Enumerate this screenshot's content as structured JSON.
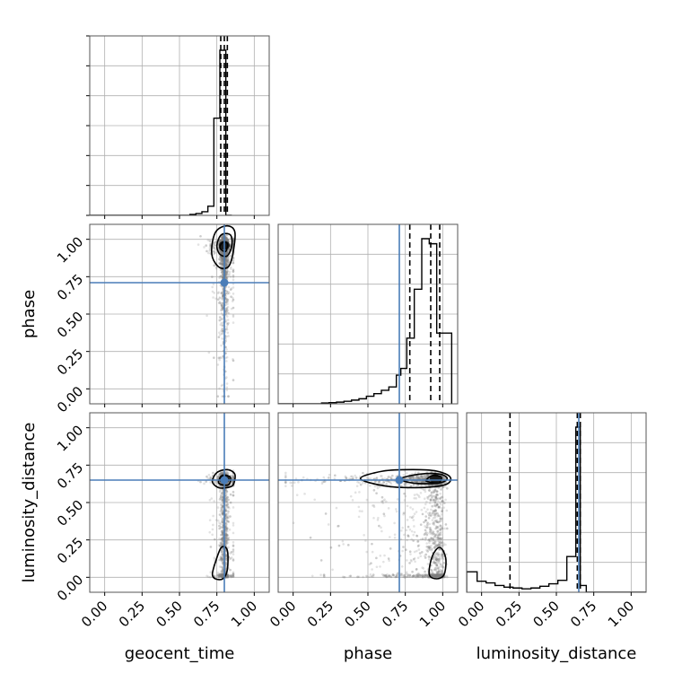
{
  "chart_data": {
    "type": "corner",
    "parameters": [
      "geocent_time",
      "phase",
      "luminosity_distance"
    ],
    "axis_range": [
      -0.1,
      1.1
    ],
    "tick_labels": [
      "0.00",
      "0.25",
      "0.50",
      "0.75",
      "1.00"
    ],
    "grid": true,
    "truths": {
      "geocent_time": 0.8,
      "phase": 0.71,
      "luminosity_distance": 0.65
    },
    "truth_color": "#4a7db8",
    "sample_color": "#808080",
    "histograms": {
      "geocent_time": {
        "bin_edges": [
          -0.1,
          0.57,
          0.61,
          0.65,
          0.69,
          0.73,
          0.77,
          0.81,
          0.85
        ],
        "counts": [
          0.0,
          0.005,
          0.01,
          0.02,
          0.05,
          0.53,
          0.9,
          0.0
        ],
        "quantiles": [
          0.776,
          0.8,
          0.82
        ]
      },
      "phase": {
        "bin_edges": [
          -0.1,
          0.19,
          0.24,
          0.29,
          0.34,
          0.39,
          0.44,
          0.49,
          0.54,
          0.59,
          0.64,
          0.69,
          0.72,
          0.76,
          0.81,
          0.86,
          0.91,
          0.96,
          1.01,
          1.06
        ],
        "counts": [
          0.0,
          0.005,
          0.007,
          0.01,
          0.015,
          0.022,
          0.03,
          0.045,
          0.06,
          0.08,
          0.1,
          0.17,
          0.21,
          0.39,
          0.68,
          0.98,
          0.95,
          0.42,
          0.42
        ],
        "quantiles": [
          0.78,
          0.92,
          0.98
        ]
      },
      "luminosity_distance": {
        "bin_edges": [
          -0.1,
          -0.03,
          0.03,
          0.09,
          0.15,
          0.21,
          0.27,
          0.33,
          0.39,
          0.45,
          0.51,
          0.57,
          0.63,
          0.66,
          0.7,
          1.1
        ],
        "counts": [
          0.12,
          0.065,
          0.055,
          0.04,
          0.03,
          0.025,
          0.02,
          0.025,
          0.035,
          0.05,
          0.07,
          0.21,
          0.97,
          0.04,
          0.0
        ],
        "quantiles": [
          0.19,
          0.64,
          0.66
        ]
      }
    },
    "contours": {
      "phase_vs_geocent_time": [
        [
          [
            0.72,
            0.98
          ],
          [
            0.75,
            1.06
          ],
          [
            0.82,
            1.09
          ],
          [
            0.87,
            1.05
          ],
          [
            0.86,
            0.92
          ],
          [
            0.83,
            0.82
          ],
          [
            0.77,
            0.81
          ],
          [
            0.72,
            0.88
          ]
        ],
        [
          [
            0.75,
            0.96
          ],
          [
            0.78,
            1.03
          ],
          [
            0.84,
            1.03
          ],
          [
            0.85,
            0.96
          ],
          [
            0.82,
            0.89
          ],
          [
            0.77,
            0.9
          ]
        ],
        [
          [
            0.77,
            0.95
          ],
          [
            0.79,
            0.98
          ],
          [
            0.82,
            0.97
          ],
          [
            0.81,
            0.92
          ],
          [
            0.78,
            0.93
          ]
        ]
      ],
      "luminosity_distance_vs_geocent_time": [
        [
          [
            0.72,
            0.64
          ],
          [
            0.75,
            0.7
          ],
          [
            0.82,
            0.72
          ],
          [
            0.87,
            0.69
          ],
          [
            0.86,
            0.62
          ],
          [
            0.82,
            0.6
          ],
          [
            0.76,
            0.6
          ]
        ],
        [
          [
            0.76,
            0.64
          ],
          [
            0.79,
            0.68
          ],
          [
            0.84,
            0.67
          ],
          [
            0.83,
            0.62
          ],
          [
            0.78,
            0.62
          ]
        ],
        [
          [
            0.72,
            0.02
          ],
          [
            0.74,
            0.1
          ],
          [
            0.78,
            0.2
          ],
          [
            0.82,
            0.18
          ],
          [
            0.82,
            0.05
          ],
          [
            0.79,
            -0.01
          ],
          [
            0.74,
            -0.01
          ]
        ]
      ],
      "luminosity_distance_vs_phase": [
        [
          [
            0.45,
            0.66
          ],
          [
            0.6,
            0.71
          ],
          [
            0.8,
            0.72
          ],
          [
            0.96,
            0.71
          ],
          [
            1.05,
            0.67
          ],
          [
            1.02,
            0.62
          ],
          [
            0.85,
            0.6
          ],
          [
            0.62,
            0.61
          ]
        ],
        [
          [
            0.72,
            0.66
          ],
          [
            0.85,
            0.69
          ],
          [
            0.98,
            0.69
          ],
          [
            1.03,
            0.66
          ],
          [
            0.97,
            0.63
          ],
          [
            0.8,
            0.63
          ]
        ],
        [
          [
            0.89,
            0.65
          ],
          [
            0.93,
            0.68
          ],
          [
            0.99,
            0.67
          ],
          [
            0.97,
            0.63
          ],
          [
            0.9,
            0.64
          ]
        ],
        [
          [
            0.91,
            0.02
          ],
          [
            0.93,
            0.14
          ],
          [
            0.98,
            0.2
          ],
          [
            1.02,
            0.13
          ],
          [
            1.01,
            0.02
          ],
          [
            0.96,
            -0.01
          ]
        ]
      ]
    },
    "dense_blobs": {
      "phase_vs_geocent_time": [
        0.8,
        0.96
      ],
      "luminosity_distance_vs_geocent_time": [
        0.8,
        0.66
      ],
      "luminosity_distance_vs_phase": [
        0.95,
        0.66
      ]
    }
  }
}
